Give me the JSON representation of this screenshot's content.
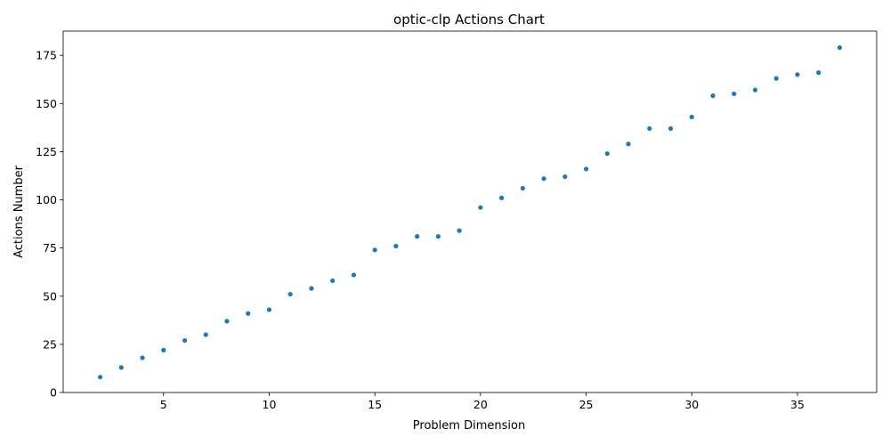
{
  "chart_data": {
    "type": "scatter",
    "title": "optic-clp Actions Chart",
    "xlabel": "Problem Dimension",
    "ylabel": "Actions Number",
    "xlim": [
      0.25,
      38.75
    ],
    "ylim": [
      0,
      187.55
    ],
    "xticks": [
      5,
      10,
      15,
      20,
      25,
      30,
      35
    ],
    "yticks": [
      0,
      25,
      50,
      75,
      100,
      125,
      150,
      175
    ],
    "grid": false,
    "color": "#1f77b4",
    "x": [
      2,
      3,
      4,
      5,
      6,
      7,
      8,
      9,
      10,
      11,
      12,
      13,
      14,
      15,
      16,
      17,
      18,
      19,
      20,
      21,
      22,
      23,
      24,
      25,
      26,
      27,
      28,
      29,
      30,
      31,
      32,
      33,
      34,
      35,
      36,
      37
    ],
    "y": [
      8,
      13,
      18,
      22,
      27,
      30,
      37,
      41,
      43,
      51,
      54,
      58,
      61,
      74,
      76,
      81,
      81,
      84,
      96,
      101,
      106,
      111,
      112,
      116,
      124,
      129,
      137,
      137,
      143,
      154,
      155,
      157,
      163,
      165,
      166,
      179
    ]
  }
}
